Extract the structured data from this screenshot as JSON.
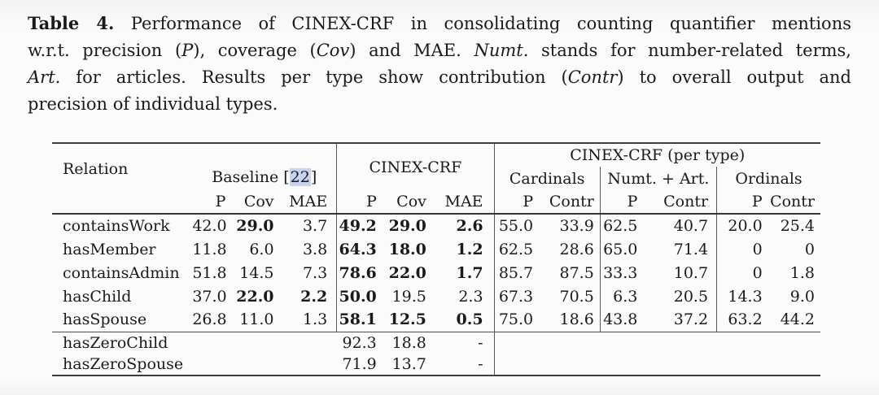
{
  "caption": {
    "lines": [
      {
        "justify": true,
        "segments": [
          {
            "text": "Table 4.",
            "bold": true
          },
          {
            "text": " Performance of CINEX-CRF in consolidating counting quantifier mentions"
          }
        ]
      },
      {
        "justify": true,
        "segments": [
          {
            "text": "w.r.t. precision ("
          },
          {
            "text": "P",
            "italic": true
          },
          {
            "text": "), coverage ("
          },
          {
            "text": "Cov",
            "italic": true
          },
          {
            "text": ") and MAE. "
          },
          {
            "text": "Numt.",
            "italic": true
          },
          {
            "text": " stands for number-related terms,"
          }
        ]
      },
      {
        "justify": true,
        "segments": [
          {
            "text": "Art.",
            "italic": true
          },
          {
            "text": " for articles. Results per type show contribution ("
          },
          {
            "text": "Contr",
            "italic": true
          },
          {
            "text": ") to overall output and"
          }
        ]
      },
      {
        "justify": false,
        "segments": [
          {
            "text": "precision of individual types."
          }
        ]
      }
    ]
  },
  "table": {
    "header": {
      "relation": "Relation",
      "baseline": {
        "label": "Baseline ",
        "cite_prefix": "[",
        "cite": "22",
        "cite_suffix": "]"
      },
      "cinex": "CINEX-CRF",
      "pertype": "CINEX-CRF (per type)",
      "groups": [
        "Cardinals",
        "Numt. + Art.",
        "Ordinals"
      ],
      "metrics3": [
        "P",
        "Cov",
        "MAE"
      ],
      "metrics2": [
        "P",
        "Contr"
      ]
    },
    "rows": [
      {
        "relation": "containsWork",
        "baseline": [
          {
            "v": "42.0"
          },
          {
            "v": "29.0",
            "bold": true
          },
          {
            "v": "3.7"
          }
        ],
        "cinex": [
          {
            "v": "49.2",
            "bold": true
          },
          {
            "v": "29.0",
            "bold": true
          },
          {
            "v": "2.6",
            "bold": true
          }
        ],
        "pertype": [
          "55.0",
          "33.9",
          "62.5",
          "40.7",
          "20.0",
          "25.4"
        ]
      },
      {
        "relation": "hasMember",
        "baseline": [
          {
            "v": "11.8"
          },
          {
            "v": "6.0"
          },
          {
            "v": "3.8"
          }
        ],
        "cinex": [
          {
            "v": "64.3",
            "bold": true
          },
          {
            "v": "18.0",
            "bold": true
          },
          {
            "v": "1.2",
            "bold": true
          }
        ],
        "pertype": [
          "62.5",
          "28.6",
          "65.0",
          "71.4",
          "0",
          "0"
        ]
      },
      {
        "relation": "containsAdmin",
        "baseline": [
          {
            "v": "51.8"
          },
          {
            "v": "14.5"
          },
          {
            "v": "7.3"
          }
        ],
        "cinex": [
          {
            "v": "78.6",
            "bold": true
          },
          {
            "v": "22.0",
            "bold": true
          },
          {
            "v": "1.7",
            "bold": true
          }
        ],
        "pertype": [
          "85.7",
          "87.5",
          "33.3",
          "10.7",
          "0",
          "1.8"
        ]
      },
      {
        "relation": "hasChild",
        "baseline": [
          {
            "v": "37.0"
          },
          {
            "v": "22.0",
            "bold": true
          },
          {
            "v": "2.2",
            "bold": true
          }
        ],
        "cinex": [
          {
            "v": "50.0",
            "bold": true
          },
          {
            "v": "19.5"
          },
          {
            "v": "2.3"
          }
        ],
        "pertype": [
          "67.3",
          "70.5",
          "6.3",
          "20.5",
          "14.3",
          "9.0"
        ]
      },
      {
        "relation": "hasSpouse",
        "baseline": [
          {
            "v": "26.8"
          },
          {
            "v": "11.0"
          },
          {
            "v": "1.3"
          }
        ],
        "cinex": [
          {
            "v": "58.1",
            "bold": true
          },
          {
            "v": "12.5",
            "bold": true
          },
          {
            "v": "0.5",
            "bold": true
          }
        ],
        "pertype": [
          "75.0",
          "18.6",
          "43.8",
          "37.2",
          "63.2",
          "44.2"
        ]
      }
    ],
    "footer_rows": [
      {
        "relation": "hasZeroChild",
        "cinex": [
          "92.3",
          "18.8",
          "-"
        ]
      },
      {
        "relation": "hasZeroSpouse",
        "cinex": [
          "71.9",
          "13.7",
          "-"
        ]
      }
    ]
  },
  "colors": {
    "citation_highlight": "#c7d4ef",
    "text": "#1a1a1a",
    "rule": "#3e3e3e"
  }
}
